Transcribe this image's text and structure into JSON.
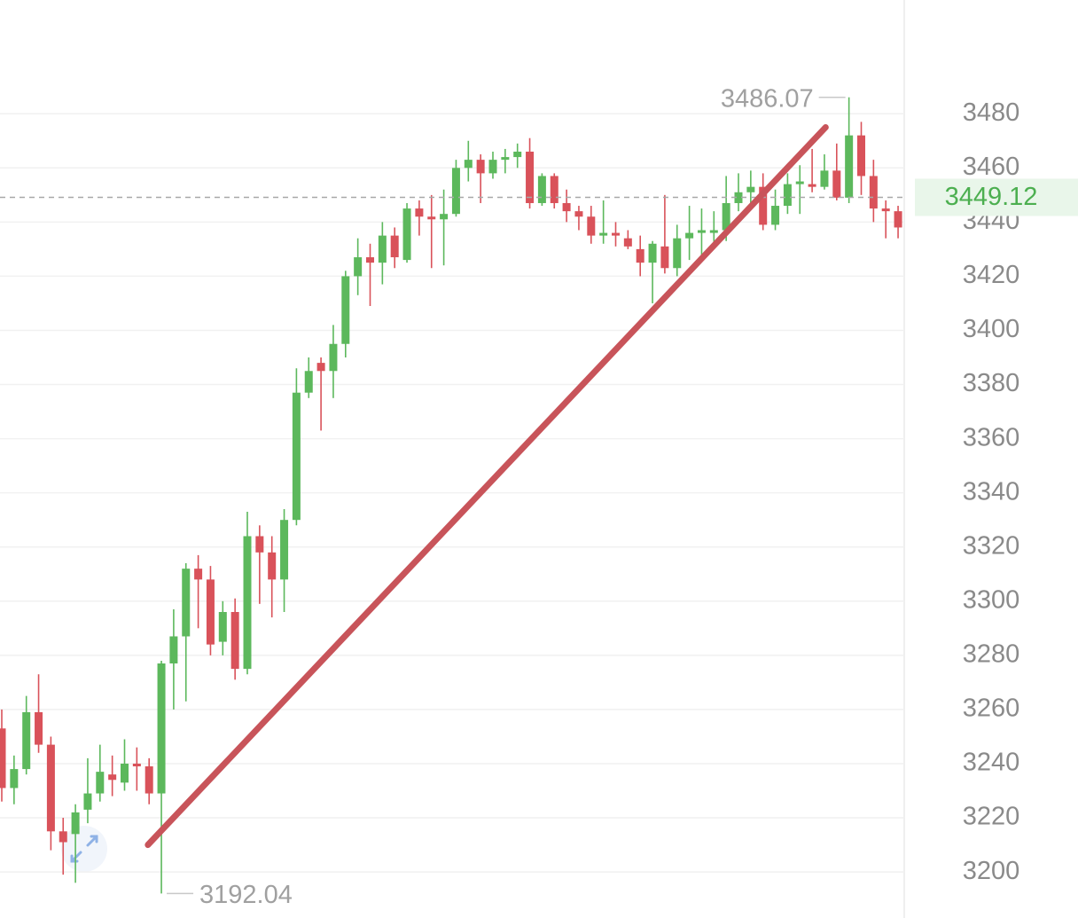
{
  "chart_data": {
    "type": "candlestick",
    "open": [
      3253,
      3231,
      3238,
      3259,
      3247,
      3215,
      3214,
      3223,
      3229,
      3236,
      3233,
      3240,
      3239,
      3229,
      3277,
      3287,
      3312,
      3308,
      3285,
      3296,
      3275,
      3324,
      3318,
      3308,
      3330,
      3377,
      3388,
      3385,
      3395,
      3420,
      3427,
      3425,
      3435,
      3426,
      3445,
      3442,
      3441,
      3443,
      3460,
      3463,
      3458,
      3463,
      3464,
      3466,
      3447,
      3457,
      3447,
      3444,
      3442,
      3435,
      3436,
      3434,
      3430,
      3425,
      3431,
      3423,
      3434,
      3436,
      3436,
      3437,
      3447,
      3451,
      3453,
      3439,
      3446,
      3454,
      3454,
      3453,
      3459,
      3449,
      3472,
      3457,
      3445,
      3444
    ],
    "high": [
      3260,
      3243,
      3265,
      3273,
      3250,
      3220,
      3225,
      3242,
      3247,
      3243,
      3249,
      3246,
      3242,
      3278,
      3297,
      3314,
      3317,
      3313,
      3300,
      3301,
      3333,
      3328,
      3324,
      3334,
      3386,
      3390,
      3390,
      3402,
      3422,
      3434,
      3432,
      3440,
      3438,
      3447,
      3448,
      3450,
      3452,
      3463,
      3470,
      3465,
      3466,
      3467,
      3469,
      3471,
      3458,
      3458,
      3452,
      3446,
      3446,
      3448,
      3440,
      3437,
      3435,
      3433,
      3450,
      3439,
      3446,
      3445,
      3444,
      3457,
      3458,
      3459,
      3458,
      3452,
      3458,
      3461,
      3467,
      3465,
      3469,
      3486.07,
      3477,
      3463,
      3448,
      3446
    ],
    "low": [
      3226,
      3225,
      3236,
      3244,
      3208,
      3199,
      3196,
      3218,
      3226,
      3228,
      3230,
      3230,
      3225,
      3192.04,
      3260,
      3263,
      3290,
      3280,
      3280,
      3271,
      3273,
      3299,
      3294,
      3296,
      3328,
      3375,
      3363,
      3375,
      3390,
      3413,
      3409,
      3417,
      3423,
      3425,
      3435,
      3423,
      3424,
      3442,
      3455,
      3447,
      3456,
      3458,
      3460,
      3445,
      3446,
      3445,
      3440,
      3437,
      3432,
      3432,
      3431,
      3430,
      3420,
      3410,
      3421,
      3420,
      3426,
      3427,
      3430,
      3433,
      3444,
      3446,
      3437,
      3437,
      3443,
      3443,
      3451,
      3452,
      3448,
      3447,
      3450,
      3440,
      3434,
      3434
    ],
    "close": [
      3231,
      3238,
      3259,
      3247,
      3215,
      3211,
      3222,
      3229,
      3237,
      3234,
      3240,
      3239,
      3229,
      3277,
      3287,
      3312,
      3308,
      3284,
      3296,
      3275,
      3324,
      3318,
      3308,
      3330,
      3377,
      3385,
      3385,
      3395,
      3420,
      3427,
      3425,
      3435,
      3427,
      3445,
      3442,
      3441,
      3443,
      3460,
      3463,
      3458,
      3463,
      3464,
      3466,
      3447,
      3457,
      3447,
      3444,
      3442,
      3435,
      3436,
      3435,
      3431,
      3425,
      3432,
      3423,
      3434,
      3436,
      3437,
      3437,
      3447,
      3451,
      3453,
      3439,
      3446,
      3454,
      3455,
      3453,
      3459,
      3449,
      3472,
      3457,
      3445,
      3444,
      3438
    ],
    "up_color": "#5cb85c",
    "down_color": "#d9525a",
    "last_price": 3449.12,
    "ylim": [
      3183,
      3522
    ],
    "yticks": [
      3200,
      3220,
      3240,
      3260,
      3280,
      3300,
      3320,
      3340,
      3360,
      3380,
      3400,
      3420,
      3440,
      3460,
      3480
    ],
    "grid": true,
    "trendline": {
      "color": "#c8545a",
      "start": [
        11.9,
        3210
      ],
      "end": [
        67.1,
        3475
      ]
    }
  }
}
